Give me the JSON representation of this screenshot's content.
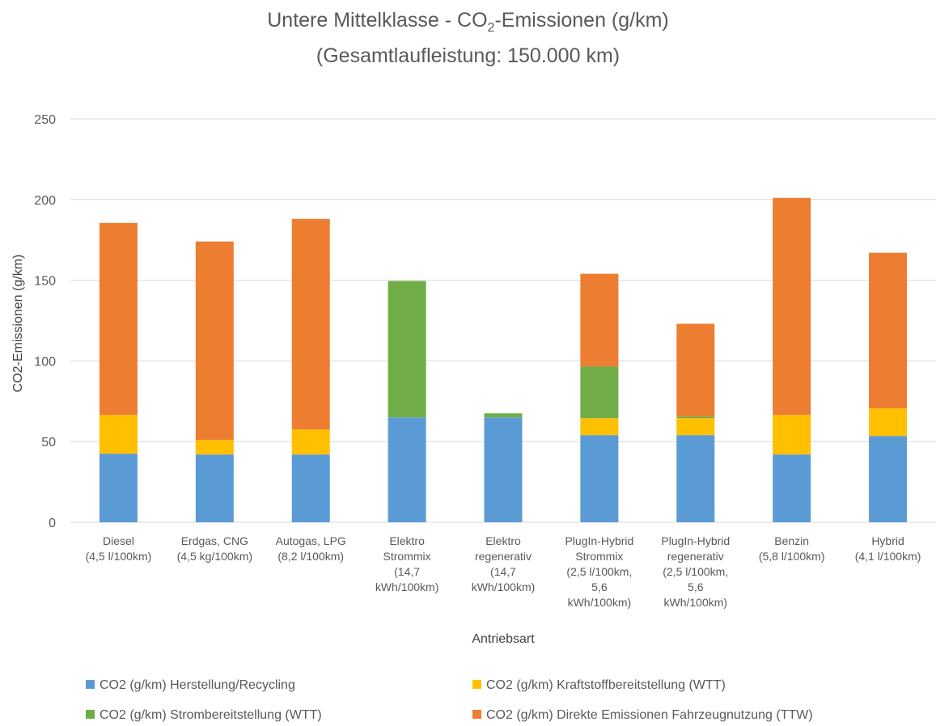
{
  "title": {
    "line1_pre": "Untere Mittelklasse - CO",
    "line1_sub": "2",
    "line1_post": "-Emissionen (g/km)",
    "line2": "(Gesamtlaufleistung: 150.000 km)"
  },
  "colors": {
    "herstellung": "#5b9bd5",
    "kraftstoff": "#ffc000",
    "strom": "#70ad47",
    "direkt": "#ed7d31",
    "grid": "#d9d9d9"
  },
  "chart_data": {
    "type": "bar",
    "stacked": true,
    "xlabel": "Antriebsart",
    "ylabel": "CO2-Emissionen (g/km)",
    "ylim": [
      0,
      250
    ],
    "yticks": [
      0,
      50,
      100,
      150,
      200,
      250
    ],
    "grid": true,
    "legend_position": "bottom",
    "categories": [
      [
        "Diesel",
        "(4,5 l/100km)"
      ],
      [
        "Erdgas, CNG",
        "(4,5 kg/100km)"
      ],
      [
        "Autogas, LPG",
        "(8,2 l/100km)"
      ],
      [
        "Elektro",
        "Strommix",
        "(14,7",
        "kWh/100km)"
      ],
      [
        "Elektro",
        "regenerativ",
        "(14,7",
        "kWh/100km)"
      ],
      [
        "PlugIn-Hybrid",
        "Strommix",
        "(2,5 l/100km,",
        "5,6",
        "kWh/100km)"
      ],
      [
        "PlugIn-Hybrid",
        "regenerativ",
        "(2,5 l/100km,",
        "5,6",
        "kWh/100km)"
      ],
      [
        "Benzin",
        "(5,8 l/100km)"
      ],
      [
        "Hybrid",
        "(4,1 l/100km)"
      ]
    ],
    "series": [
      {
        "name": "CO2 (g/km) Herstellung/Recycling",
        "color_key": "herstellung",
        "values": [
          42.5,
          42,
          42,
          65,
          65,
          54,
          54,
          42,
          53.5
        ]
      },
      {
        "name": "CO2 (g/km) Kraftstoffbereitstellung  (WTT)",
        "color_key": "kraftstoff",
        "values": [
          24,
          9,
          15.5,
          0,
          0,
          10.5,
          10.5,
          24.5,
          17
        ]
      },
      {
        "name": "CO2 (g/km) Strombereitstellung (WTT)",
        "color_key": "strom",
        "values": [
          0,
          0,
          0,
          84.5,
          2.5,
          32,
          1,
          0,
          0
        ]
      },
      {
        "name": "CO2 (g/km) Direkte Emissionen Fahrzeugnutzung (TTW)",
        "color_key": "direkt",
        "values": [
          119,
          123,
          130.5,
          0,
          0,
          57.5,
          57.5,
          134.5,
          96.5
        ]
      }
    ]
  }
}
